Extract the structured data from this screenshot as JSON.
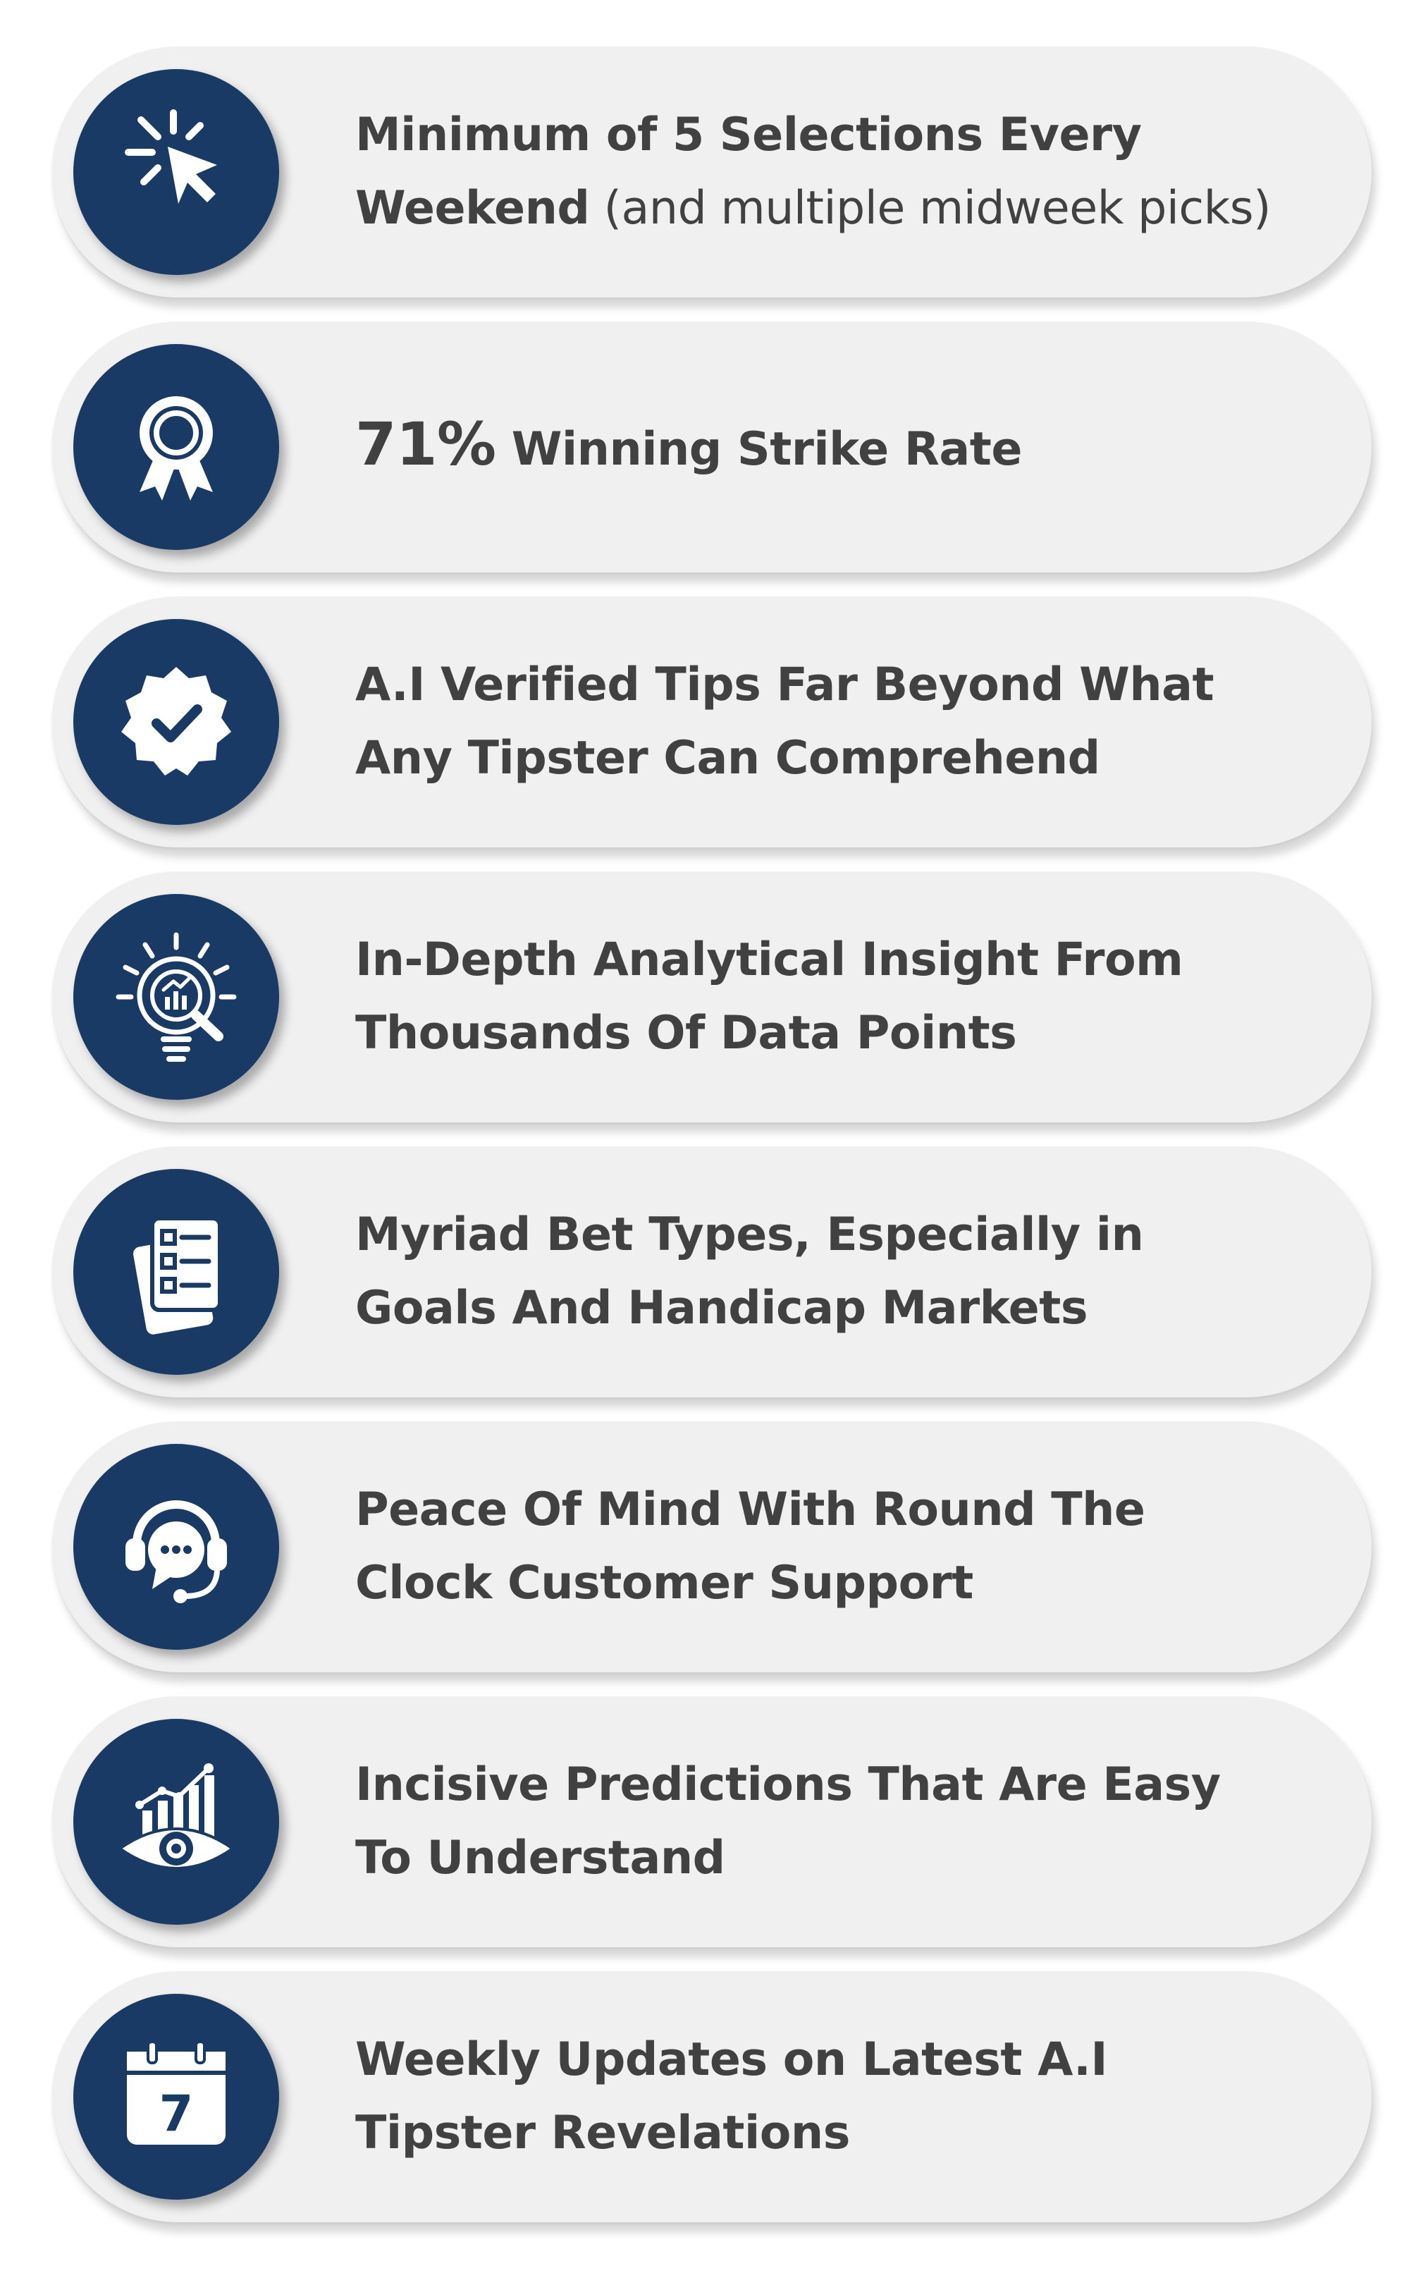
{
  "features": [
    {
      "icon": "cursor-click-icon",
      "line1": "Minimum of 5 Selections Every",
      "line2_bold": "Weekend",
      "line2_light": " (and multiple midweek picks)"
    },
    {
      "icon": "award-ribbon-icon",
      "highlight": "71%",
      "text": " Winning Strike Rate"
    },
    {
      "icon": "verified-badge-icon",
      "line1": "A.I Verified Tips Far Beyond What",
      "line2": "Any Tipster Can Comprehend"
    },
    {
      "icon": "lightbulb-analytics-icon",
      "line1": "In-Depth Analytical Insight From",
      "line2": "Thousands Of Data Points"
    },
    {
      "icon": "betting-slips-icon",
      "line1": "Myriad Bet Types, Especially in",
      "line2": "Goals And Handicap Markets"
    },
    {
      "icon": "headset-support-icon",
      "line1": "Peace Of Mind With Round The",
      "line2": "Clock Customer Support"
    },
    {
      "icon": "eye-chart-icon",
      "line1": "Incisive Predictions That Are Easy",
      "line2": "To Understand"
    },
    {
      "icon": "calendar-icon",
      "calendar_day": "7",
      "line1": "Weekly Updates on Latest A.I",
      "line2": "Tipster Revelations"
    }
  ],
  "colors": {
    "icon_circle": "#1a3a66",
    "card_background": "#f0f0f0",
    "text": "#414141"
  }
}
